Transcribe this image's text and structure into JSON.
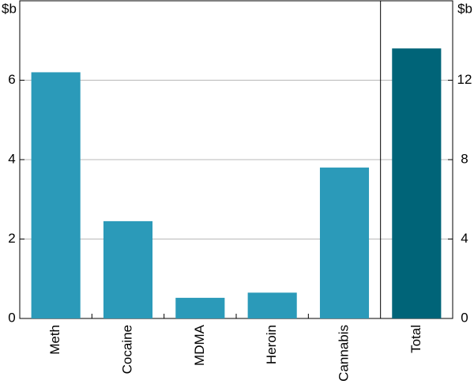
{
  "chart_data": {
    "type": "bar",
    "categories": [
      "Meth",
      "Cocaine",
      "MDMA",
      "Heroin",
      "Cannabis",
      "Total"
    ],
    "series": [
      {
        "color": "#2b9ab9",
        "values": [
          6.2,
          2.45,
          0.52,
          0.65,
          3.8,
          null
        ]
      },
      {
        "color": "#006478",
        "axis": "y2",
        "values": [
          null,
          null,
          null,
          null,
          null,
          13.6
        ]
      }
    ],
    "ylabel": "$b",
    "y2label": "$b",
    "ylim": [
      0,
      8
    ],
    "yticks": [
      0,
      2,
      4,
      6
    ],
    "y2lim": [
      0,
      16
    ],
    "y2ticks": [
      0,
      4,
      8,
      12
    ],
    "grid": true
  }
}
